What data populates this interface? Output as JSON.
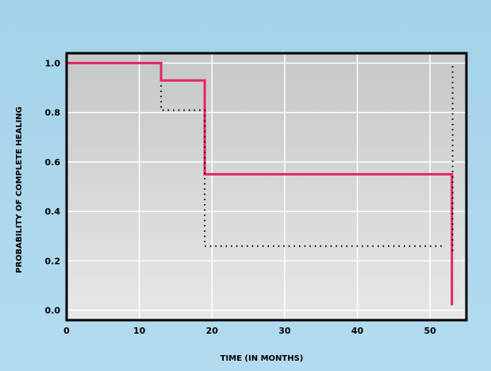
{
  "chart_data": {
    "type": "line",
    "title": "",
    "xlabel": "TIME (IN MONTHS)",
    "ylabel": "PROBABILITY OF COMPLETE HEALING",
    "xlim": [
      0,
      55
    ],
    "ylim": [
      -0.04,
      1.04
    ],
    "xticks": [
      "0",
      "10",
      "20",
      "30",
      "40",
      "50"
    ],
    "xtick_values": [
      0,
      10,
      20,
      30,
      40,
      50
    ],
    "yticks": [
      "0.0",
      "0.2",
      "0.4",
      "0.6",
      "0.8",
      "1.0"
    ],
    "ytick_values": [
      0,
      0.2,
      0.4,
      0.6,
      0.8,
      1.0
    ],
    "grid": true,
    "series": [
      {
        "style": "solid",
        "color": "#e8245e",
        "step": true,
        "x": [
          0,
          13,
          19,
          53,
          53
        ],
        "y": [
          1.0,
          0.93,
          0.55,
          0.55,
          0.02
        ]
      },
      {
        "style": "dotted",
        "color": "#000000",
        "step": true,
        "x": [
          13,
          13,
          19,
          19,
          52
        ],
        "y": [
          0.91,
          0.81,
          0.81,
          0.26,
          0.26
        ]
      },
      {
        "style": "dotted",
        "color": "#000000",
        "step": false,
        "x": [
          53.1,
          53.1
        ],
        "y": [
          0.24,
          1.0
        ]
      }
    ]
  },
  "colors": {
    "background": "#a6d3ea",
    "plot_top": "#c5c8c9",
    "plot_bottom": "#e6e7e7",
    "grid": "#ffffff",
    "axis": "#000000"
  }
}
